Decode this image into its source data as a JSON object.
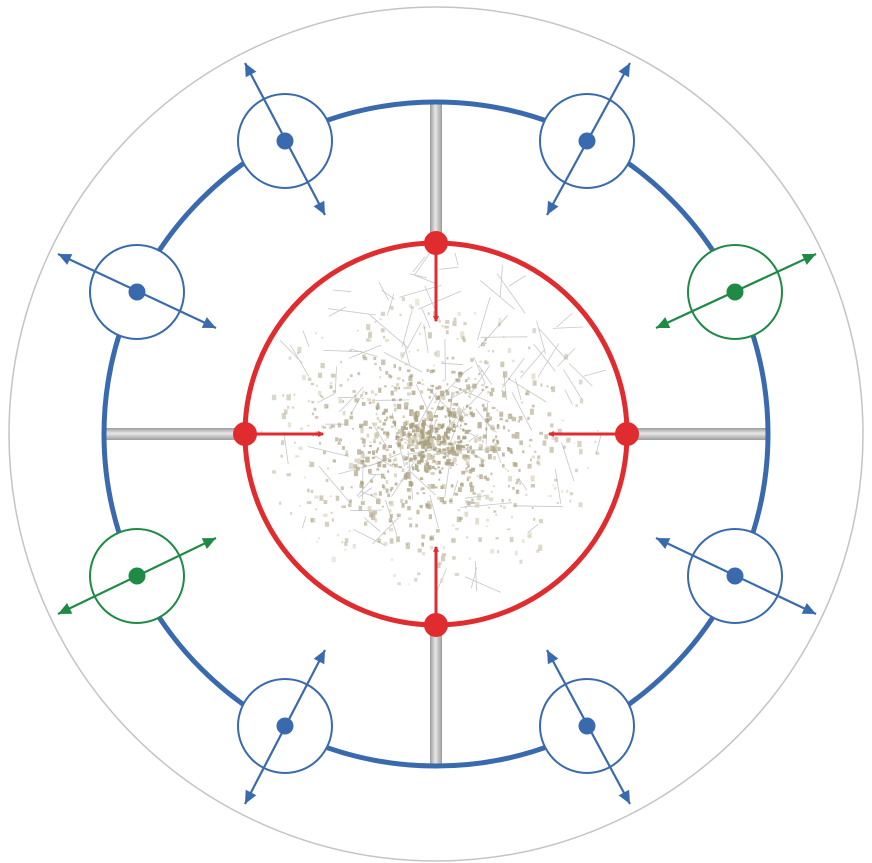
{
  "diagram": {
    "colors": {
      "outer_boundary": "#c4c4c4",
      "ring": "#3a6aae",
      "spoke": "#9c9c9c",
      "spoke_highlight": "#e6e6e6",
      "inner_circle": "#e02b2f",
      "inner_arrow": "#e02b2f",
      "node_blue": "#3a6aae",
      "node_green": "#1f8a45",
      "map_street": "#b9b9b9",
      "map_block": "#a99f80",
      "map_block_light": "#cfc8b0"
    },
    "nodes": [
      {
        "id": "top-left",
        "variant": "blue"
      },
      {
        "id": "top-right",
        "variant": "blue"
      },
      {
        "id": "upper-left",
        "variant": "blue"
      },
      {
        "id": "upper-right",
        "variant": "green"
      },
      {
        "id": "lower-left",
        "variant": "green"
      },
      {
        "id": "lower-right",
        "variant": "blue"
      },
      {
        "id": "bottom-left",
        "variant": "blue"
      },
      {
        "id": "bottom-right",
        "variant": "blue"
      }
    ],
    "inner_pins": [
      "top",
      "left",
      "right",
      "bottom"
    ],
    "spokes": [
      "top",
      "bottom",
      "left",
      "right"
    ],
    "center_image": "city-map"
  }
}
